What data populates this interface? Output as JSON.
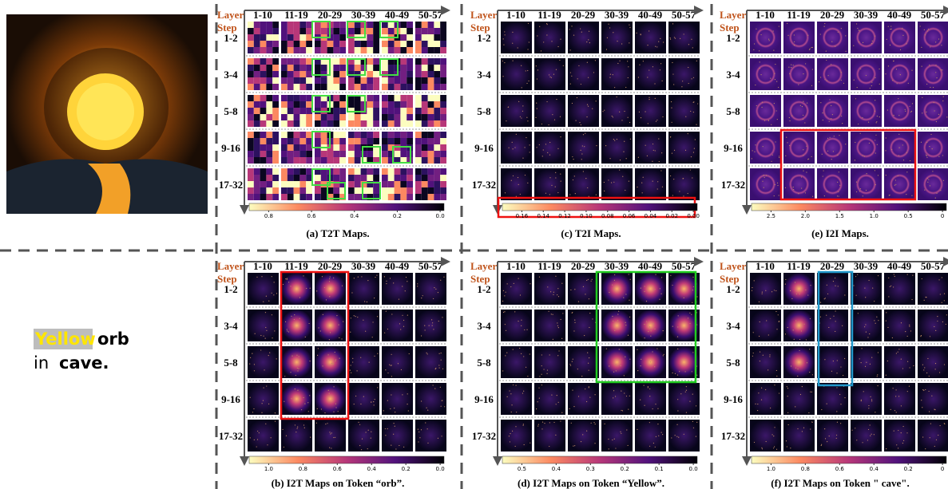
{
  "prompt": {
    "highlight": "Yellow",
    "word": "orb",
    "prefix": "in",
    "bold": "cave."
  },
  "layer_label": "Layer",
  "step_label": "Step",
  "columns": [
    "1-10",
    "11-19",
    "20-29",
    "30-39",
    "40-49",
    "50-57"
  ],
  "steps": [
    "1-2",
    "3-4",
    "5-8",
    "9-16",
    "17-32"
  ],
  "panels": [
    {
      "ticks": [
        "0.8",
        "0.6",
        "0.4",
        "0.2",
        "0.0"
      ],
      "caption": "(a) T2T Maps."
    },
    {
      "ticks": [
        "0.16",
        "0.14",
        "0.12",
        "0.10",
        "0.08",
        "0.06",
        "0.04",
        "0.02",
        "0.00"
      ],
      "caption": "(c) T2I Maps."
    },
    {
      "ticks": [
        "2.5",
        "2.0",
        "1.5",
        "1.0",
        "0.5",
        "0"
      ],
      "caption": "(e) I2I Maps."
    },
    {
      "ticks": [
        "1.0",
        "0.8",
        "0.6",
        "0.4",
        "0.2",
        "0.0"
      ],
      "caption": "(b) I2T Maps on Token “orb”."
    },
    {
      "ticks": [
        "0.5",
        "0.4",
        "0.3",
        "0.2",
        "0.1",
        "0.0"
      ],
      "caption": "(d) I2T Maps on Token “Yellow”."
    },
    {
      "ticks": [
        "1.0",
        "0.8",
        "0.6",
        "0.4",
        "0.2",
        "0"
      ],
      "caption": "(f) I2T Maps on Token \" cave\"."
    }
  ]
}
